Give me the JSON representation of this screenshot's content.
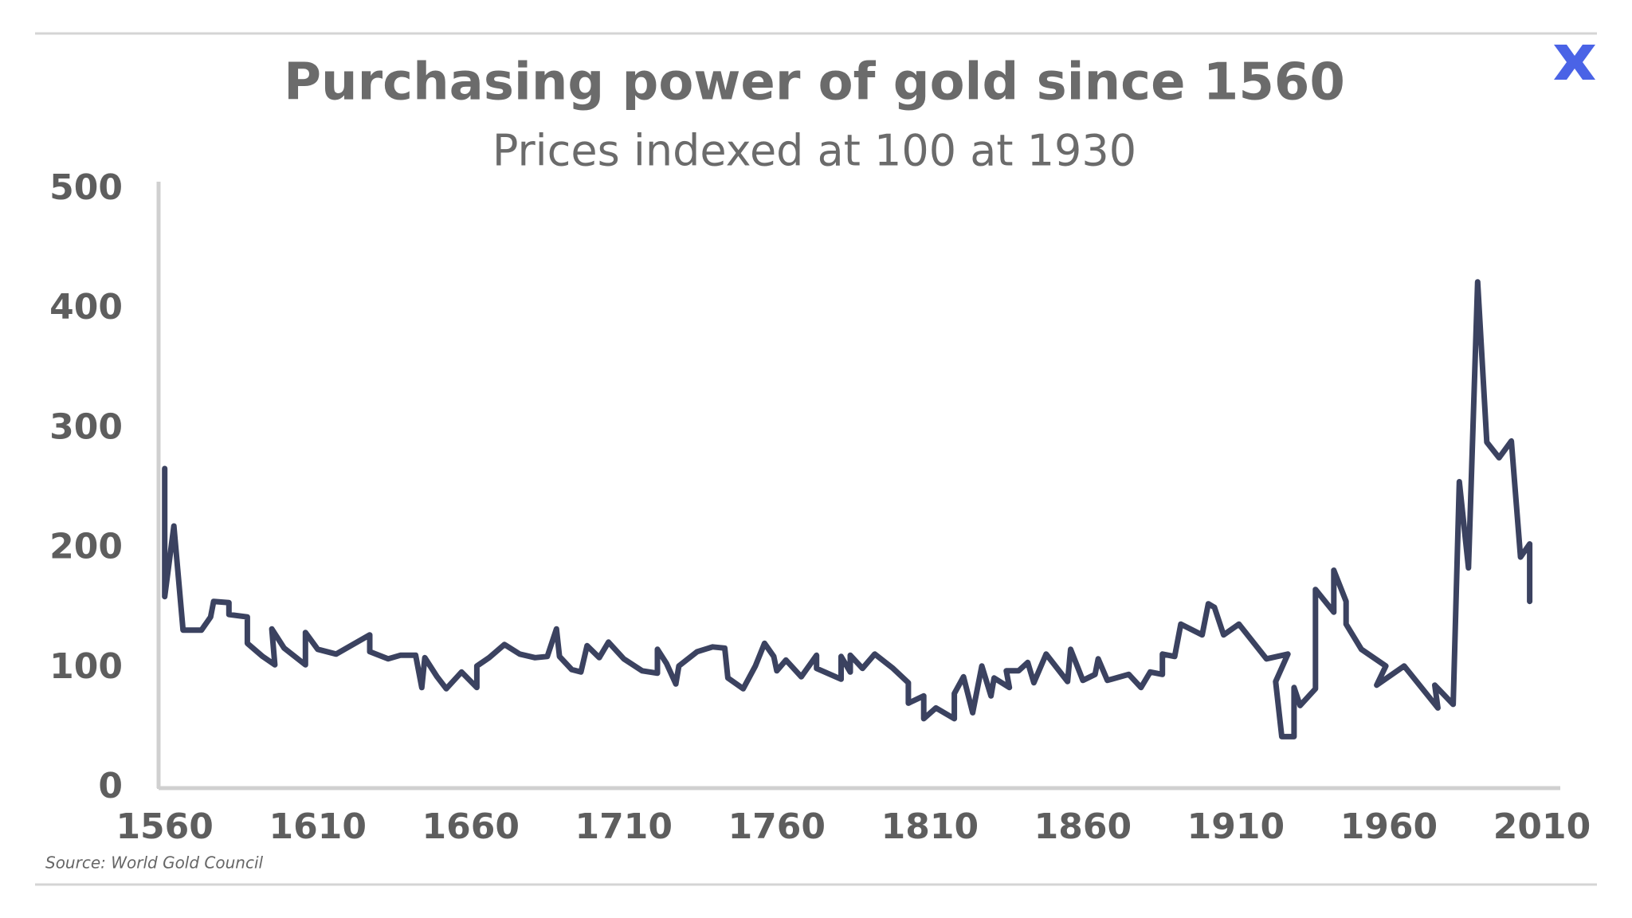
{
  "chart_data": {
    "type": "line",
    "title": "Purchasing power of gold since 1560",
    "subtitle": "Prices indexed at 100 at 1930",
    "source": "Source: World Gold Council",
    "xlim": [
      1558,
      2016
    ],
    "xticks": [
      1560,
      1610,
      1660,
      1710,
      1760,
      1810,
      1860,
      1910,
      1960,
      2010
    ],
    "ylim": [
      0,
      500
    ],
    "yticks": [
      0,
      100,
      200,
      300,
      400,
      500
    ],
    "grid": false,
    "series": [
      {
        "color": "#3b4260",
        "x": [
          1560,
          1560,
          1563,
          1566,
          1572,
          1575,
          1576,
          1581,
          1581,
          1587,
          1587,
          1592,
          1596,
          1595,
          1599,
          1606,
          1606,
          1610,
          1616,
          1627,
          1627,
          1633,
          1637,
          1642,
          1644,
          1645,
          1649,
          1652,
          1657,
          1662,
          1662,
          1666,
          1671,
          1676,
          1681,
          1685,
          1688,
          1689,
          1693,
          1696,
          1698,
          1702,
          1705,
          1710,
          1716,
          1721,
          1721,
          1724,
          1727,
          1728,
          1734,
          1739,
          1743,
          1744,
          1749,
          1753,
          1756,
          1759,
          1760,
          1763,
          1768,
          1773,
          1773,
          1781,
          1781,
          1784,
          1784,
          1788,
          1792,
          1798,
          1803,
          1803,
          1808,
          1808,
          1812,
          1818,
          1818,
          1821,
          1824,
          1827,
          1830,
          1831,
          1836,
          1835,
          1839,
          1842,
          1844,
          1848,
          1855,
          1856,
          1860,
          1864,
          1865,
          1868,
          1875,
          1879,
          1882,
          1886,
          1886,
          1890,
          1892,
          1899,
          1901,
          1903,
          1906,
          1911,
          1920,
          1927,
          1923,
          1925,
          1929,
          1929,
          1931,
          1936,
          1936,
          1942,
          1942,
          1946,
          1946,
          1951,
          1959,
          1956,
          1965,
          1976,
          1975,
          1981,
          1983,
          1986,
          1989,
          1992,
          1996,
          2000,
          2003,
          2006,
          2006
        ],
        "values": [
          267,
          160,
          219,
          132,
          132,
          143,
          156,
          155,
          145,
          143,
          121,
          110,
          103,
          133,
          117,
          103,
          130,
          116,
          112,
          128,
          114,
          108,
          111,
          111,
          84,
          109,
          93,
          83,
          97,
          84,
          102,
          109,
          120,
          112,
          109,
          110,
          133,
          110,
          99,
          97,
          119,
          109,
          122,
          108,
          98,
          96,
          116,
          104,
          87,
          102,
          114,
          118,
          117,
          92,
          83,
          102,
          121,
          110,
          98,
          107,
          93,
          111,
          100,
          91,
          110,
          97,
          111,
          100,
          112,
          100,
          88,
          71,
          77,
          58,
          67,
          58,
          79,
          93,
          63,
          102,
          77,
          92,
          84,
          98,
          98,
          105,
          88,
          112,
          89,
          116,
          90,
          95,
          108,
          90,
          95,
          84,
          97,
          95,
          112,
          110,
          137,
          128,
          154,
          151,
          128,
          137,
          108,
          112,
          89,
          43,
          43,
          84,
          69,
          83,
          166,
          147,
          182,
          156,
          137,
          116,
          102,
          86,
          102,
          67,
          86,
          70,
          256,
          184,
          423,
          289,
          276,
          290,
          193,
          204,
          156
        ]
      }
    ]
  }
}
